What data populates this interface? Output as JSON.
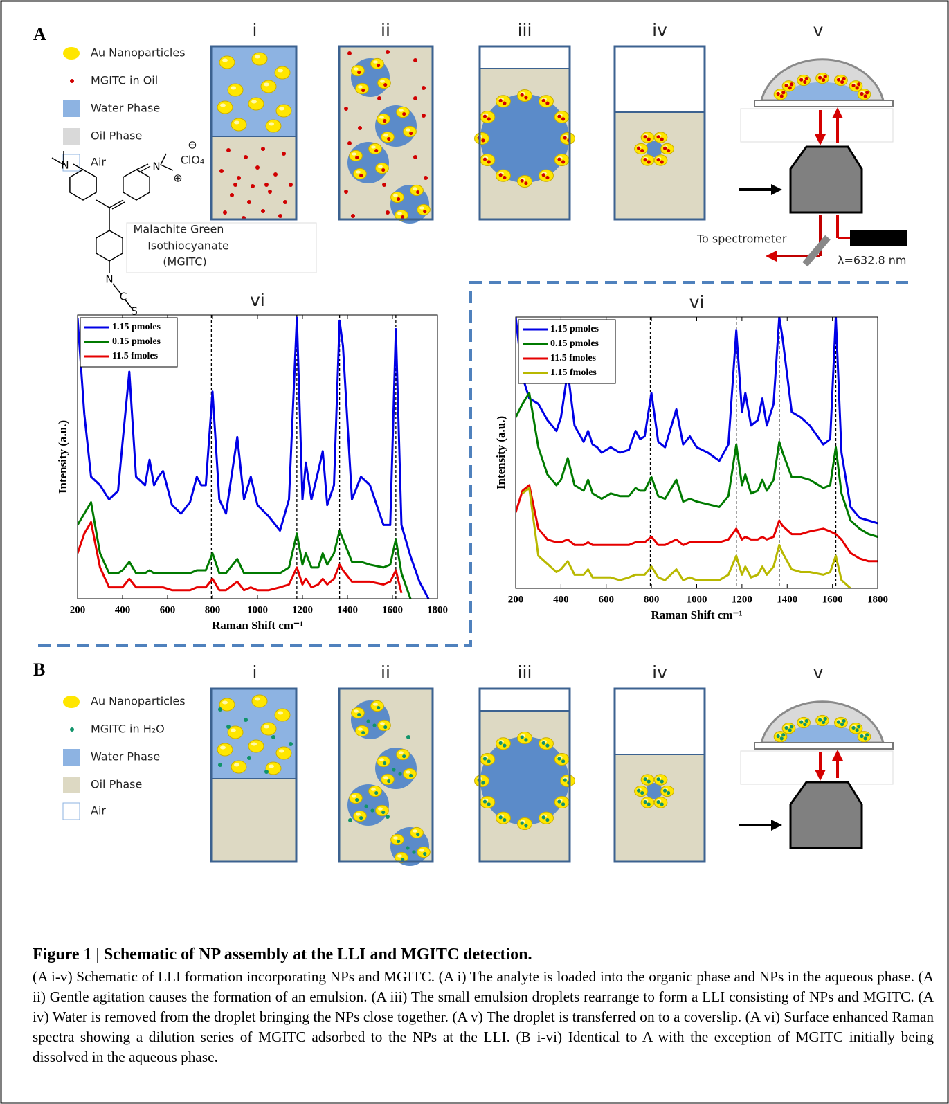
{
  "panel_a": {
    "label": "A",
    "steps": [
      "i",
      "ii",
      "iii",
      "iv",
      "v"
    ],
    "legend": [
      "Au Nanoparticles",
      "MGITC in Oil",
      "Water Phase",
      "Oil Phase",
      "Air"
    ],
    "molecule": {
      "name_lines": [
        "Malachite Green",
        "Isothiocyanate",
        "(MGITC)"
      ],
      "counter_ion": "ClO₄",
      "charges": [
        "⊖",
        "⊕"
      ],
      "atoms": [
        "N",
        "N",
        "N",
        "C",
        "S"
      ]
    },
    "setup": {
      "detector_label": "To spectrometer",
      "laser_label": "λ=632.8 nm"
    }
  },
  "panel_b": {
    "label": "B",
    "steps": [
      "i",
      "ii",
      "iii",
      "iv",
      "v"
    ],
    "legend": [
      "Au Nanoparticles",
      "MGITC in H₂O",
      "Water Phase",
      "Oil Phase",
      "Air"
    ]
  },
  "chart_data": [
    {
      "type": "line",
      "title": "vi",
      "x_label": "Raman Shift cm⁻¹",
      "y_label": "Intensity (a.u.)",
      "xlim": [
        200,
        1800
      ],
      "xticks": [
        200,
        400,
        600,
        800,
        1000,
        1200,
        1400,
        1600,
        1800
      ],
      "ylim": [
        0,
        100
      ],
      "legend": "upper left",
      "reference_lines": [
        795,
        1175,
        1365,
        1615
      ],
      "x": [
        200,
        230,
        260,
        300,
        340,
        380,
        400,
        430,
        460,
        500,
        520,
        540,
        560,
        580,
        620,
        660,
        700,
        730,
        750,
        770,
        800,
        830,
        860,
        910,
        940,
        970,
        1000,
        1050,
        1100,
        1140,
        1175,
        1200,
        1215,
        1240,
        1270,
        1290,
        1310,
        1340,
        1365,
        1380,
        1420,
        1460,
        1500,
        1560,
        1590,
        1615,
        1640,
        1680,
        1720,
        1760,
        1800
      ],
      "series": [
        {
          "name": "1.15 pmoles",
          "color": "#0000e6",
          "values": [
            99,
            65,
            43,
            40,
            35,
            38,
            55,
            80,
            43,
            40,
            49,
            40,
            43,
            45,
            33,
            30,
            34,
            43,
            40,
            40,
            73,
            35,
            30,
            57,
            35,
            43,
            33,
            29,
            24,
            35,
            99,
            35,
            48,
            35,
            45,
            52,
            33,
            40,
            98,
            89,
            35,
            43,
            40,
            26,
            26,
            95,
            26,
            15,
            6,
            0,
            null
          ]
        },
        {
          "name": "0.15 pmoles",
          "color": "#007a00",
          "values": [
            26,
            30,
            34,
            16,
            9,
            9,
            10,
            13,
            9,
            9,
            10,
            9,
            9,
            9,
            9,
            9,
            9,
            10,
            10,
            10,
            16,
            9,
            9,
            14,
            9,
            9,
            9,
            9,
            9,
            11,
            23,
            12,
            16,
            11,
            11,
            16,
            12,
            16,
            24,
            21,
            13,
            13,
            12,
            11,
            12,
            21,
            9,
            0,
            null,
            null,
            null
          ]
        },
        {
          "name": "11.5 fmoles",
          "color": "#e60000",
          "values": [
            16,
            23,
            27,
            11,
            4,
            4,
            4,
            7,
            4,
            4,
            4,
            4,
            4,
            4,
            3,
            3,
            3,
            4,
            4,
            4,
            7,
            3,
            3,
            6,
            3,
            4,
            3,
            3,
            4,
            5,
            11,
            5,
            7,
            4,
            5,
            7,
            5,
            7,
            12,
            10,
            6,
            6,
            6,
            5,
            6,
            10,
            2,
            null,
            null,
            null,
            null
          ]
        }
      ]
    },
    {
      "type": "line",
      "title": "vi",
      "x_label": "Raman Shift cm⁻¹",
      "y_label": "Intensity (a.u.)",
      "xlim": [
        200,
        1800
      ],
      "xticks": [
        200,
        400,
        600,
        800,
        1000,
        1200,
        1400,
        1600,
        1800
      ],
      "ylim": [
        0,
        100
      ],
      "legend": "upper left",
      "reference_lines": [
        795,
        1175,
        1365,
        1615
      ],
      "x": [
        200,
        230,
        260,
        300,
        340,
        380,
        400,
        430,
        460,
        500,
        520,
        540,
        560,
        580,
        620,
        660,
        700,
        730,
        750,
        770,
        800,
        830,
        860,
        910,
        940,
        970,
        1000,
        1050,
        1100,
        1140,
        1175,
        1200,
        1215,
        1240,
        1270,
        1290,
        1310,
        1340,
        1365,
        1380,
        1420,
        1460,
        1500,
        1560,
        1590,
        1615,
        1640,
        1680,
        1720,
        1760,
        1800
      ],
      "series": [
        {
          "name": "1.15 pmoles",
          "color": "#0000e6",
          "values": [
            100,
            78,
            70,
            68,
            62,
            58,
            63,
            80,
            60,
            54,
            58,
            53,
            52,
            50,
            52,
            50,
            51,
            58,
            55,
            56,
            72,
            54,
            52,
            66,
            53,
            56,
            52,
            50,
            47,
            53,
            95,
            65,
            72,
            60,
            62,
            70,
            60,
            68,
            100,
            92,
            65,
            63,
            60,
            53,
            55,
            100,
            50,
            30,
            26,
            25,
            24
          ]
        },
        {
          "name": "0.15 pmoles",
          "color": "#007a00",
          "values": [
            63,
            68,
            72,
            52,
            42,
            38,
            40,
            48,
            38,
            36,
            40,
            35,
            34,
            33,
            35,
            34,
            34,
            37,
            36,
            36,
            41,
            34,
            33,
            40,
            32,
            33,
            32,
            31,
            30,
            34,
            53,
            38,
            42,
            35,
            36,
            40,
            36,
            40,
            54,
            50,
            41,
            41,
            40,
            37,
            38,
            52,
            35,
            25,
            22,
            20,
            19
          ]
        },
        {
          "name": "11.5 fmoles",
          "color": "#e60000",
          "values": [
            28,
            36,
            38,
            22,
            18,
            17,
            17,
            18,
            16,
            16,
            17,
            16,
            16,
            16,
            16,
            16,
            16,
            17,
            17,
            17,
            19,
            16,
            16,
            18,
            16,
            17,
            17,
            17,
            17,
            18,
            22,
            18,
            19,
            18,
            18,
            19,
            18,
            19,
            25,
            23,
            20,
            20,
            21,
            22,
            21,
            20,
            18,
            13,
            11,
            10,
            10
          ]
        },
        {
          "name": "1.15 fmoles",
          "color": "#b8b800",
          "values": [
            null,
            35,
            37,
            12,
            9,
            6,
            7,
            10,
            5,
            5,
            7,
            4,
            4,
            4,
            4,
            3,
            4,
            5,
            5,
            5,
            8,
            4,
            3,
            7,
            3,
            4,
            3,
            3,
            3,
            5,
            12,
            5,
            8,
            4,
            5,
            8,
            5,
            8,
            16,
            13,
            7,
            6,
            6,
            5,
            6,
            12,
            3,
            0,
            null,
            null,
            null
          ]
        }
      ]
    }
  ],
  "caption": {
    "title": "Figure 1 | Schematic of NP assembly at the LLI and MGITC detection.",
    "body": "(A i-v) Schematic of LLI formation incorporating NPs and MGITC. (A i) The analyte is loaded into the organic phase and NPs in the aqueous phase.  (A ii) Gentle agitation causes the formation of an emulsion.  (A iii) The small emulsion droplets rearrange to form a LLI consisting of NPs and MGITC. (A iv) Water is removed from the droplet bringing the NPs close together. (A v) The droplet is transferred on to a coverslip. (A vi) Surface enhanced Raman spectra showing a dilution series of MGITC adsorbed to the NPs at the LLI. (B i-vi) Identical to A with the exception of MGITC initially being dissolved in the aqueous phase."
  }
}
